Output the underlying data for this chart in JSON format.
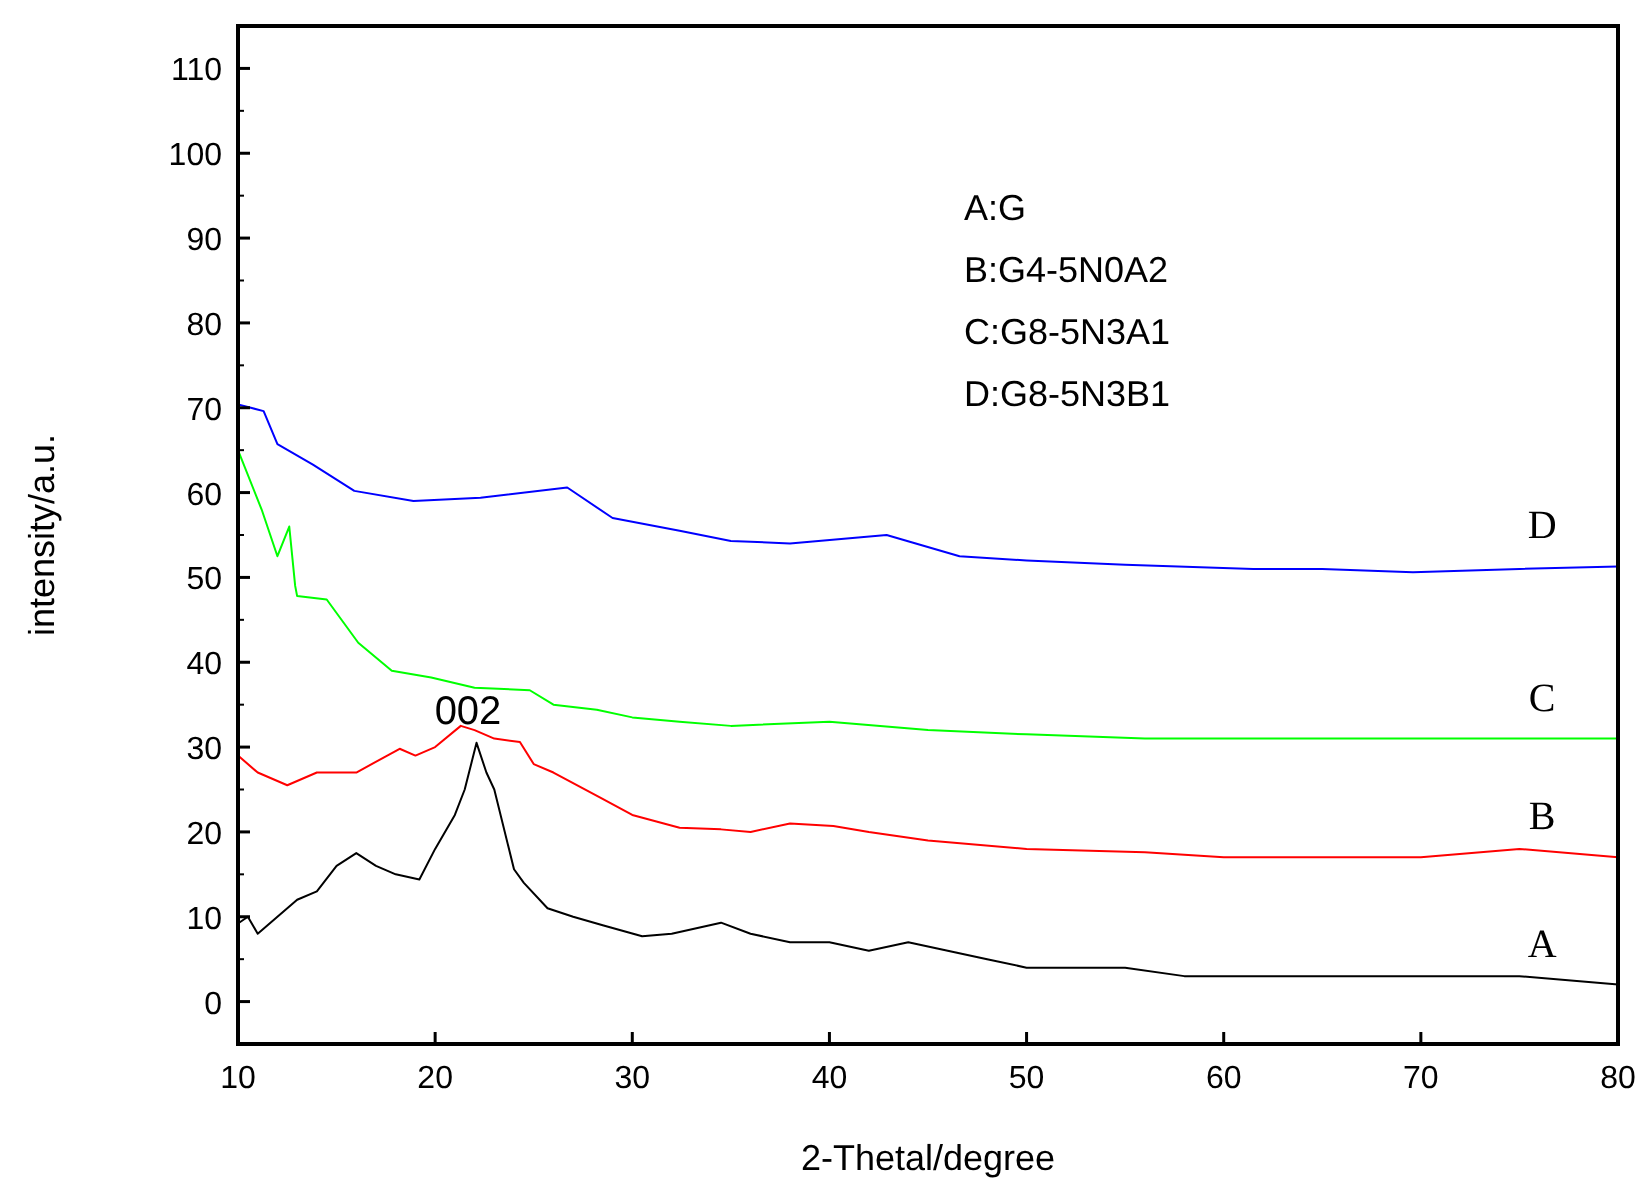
{
  "chart_data": {
    "type": "line",
    "xlabel": "2-Thetal/degree",
    "ylabel": "intensity/a.u.",
    "xlim": [
      10,
      80
    ],
    "ylim": [
      -5,
      115
    ],
    "xticks": [
      10,
      20,
      30,
      40,
      50,
      60,
      70,
      80
    ],
    "yticks": [
      0,
      10,
      20,
      30,
      40,
      50,
      60,
      70,
      80,
      90,
      100,
      110
    ],
    "grid": false,
    "line_style": "solid",
    "annotations": [
      "A:G",
      "B:G4-5N0A2",
      "C:G8-5N3A1",
      "D:G8-5N3B1",
      "002"
    ],
    "series": [
      {
        "name": "A",
        "color": "#000000",
        "x": [
          10,
          10.5,
          11,
          12,
          13,
          14,
          15,
          16,
          17,
          18,
          19.2,
          20,
          21,
          21.5,
          22.1,
          22.6,
          23,
          24,
          24.5,
          25.7,
          27,
          28.5,
          30.5,
          32,
          34.5,
          36,
          38,
          40,
          42,
          44,
          46,
          48,
          50,
          52,
          55,
          58,
          60,
          65,
          70,
          75,
          80
        ],
        "values": [
          9.2,
          10,
          8,
          10,
          12,
          13,
          16,
          17.5,
          16,
          15,
          14.4,
          18,
          22,
          25,
          30.5,
          27,
          25,
          15.6,
          14,
          11,
          10,
          9,
          7.7,
          8,
          9.3,
          8,
          7,
          7,
          6,
          7,
          6,
          5,
          4,
          4,
          4,
          3,
          3,
          3,
          3,
          3,
          2
        ]
      },
      {
        "name": "B",
        "color": "#ff0000",
        "x": [
          10,
          11,
          12.5,
          14,
          16,
          18.2,
          19,
          20,
          21.3,
          22,
          23,
          24.3,
          25,
          26,
          28.4,
          30,
          32.4,
          34.5,
          36,
          38,
          40.2,
          42,
          45,
          50,
          56,
          60,
          65,
          70,
          75,
          80
        ],
        "values": [
          29,
          27,
          25.5,
          27,
          27,
          29.8,
          29,
          30,
          32.5,
          32,
          31,
          30.6,
          28,
          27,
          24,
          22,
          20.5,
          20.3,
          20,
          21,
          20.7,
          20,
          19,
          18,
          17.6,
          17,
          17,
          17,
          18,
          17
        ]
      },
      {
        "name": "C",
        "color": "#00ff00",
        "x": [
          10,
          11.2,
          12,
          12.6,
          12.9,
          13,
          14.5,
          16.1,
          17.8,
          19.8,
          22,
          24.8,
          26,
          28.2,
          30,
          32.4,
          35,
          40,
          45,
          50,
          56,
          60,
          70,
          80
        ],
        "values": [
          65,
          58,
          52.5,
          56,
          49,
          47.8,
          47.4,
          42.3,
          39,
          38.2,
          37,
          36.7,
          35,
          34.4,
          33.5,
          33,
          32.5,
          33,
          32,
          31.5,
          31,
          31,
          31,
          31
        ]
      },
      {
        "name": "D",
        "color": "#0000ff",
        "x": [
          10,
          11.3,
          12,
          13.8,
          15.9,
          18.9,
          22.3,
          26.7,
          29,
          32.4,
          35,
          38,
          42.9,
          46.6,
          50,
          55,
          61.5,
          65,
          69.6,
          75,
          80
        ],
        "values": [
          70.4,
          69.6,
          65.7,
          63.3,
          60.2,
          59,
          59.4,
          60.6,
          57,
          55.5,
          54.3,
          54,
          55,
          52.5,
          52,
          51.5,
          51,
          51,
          50.6,
          51,
          51.3
        ]
      }
    ]
  }
}
